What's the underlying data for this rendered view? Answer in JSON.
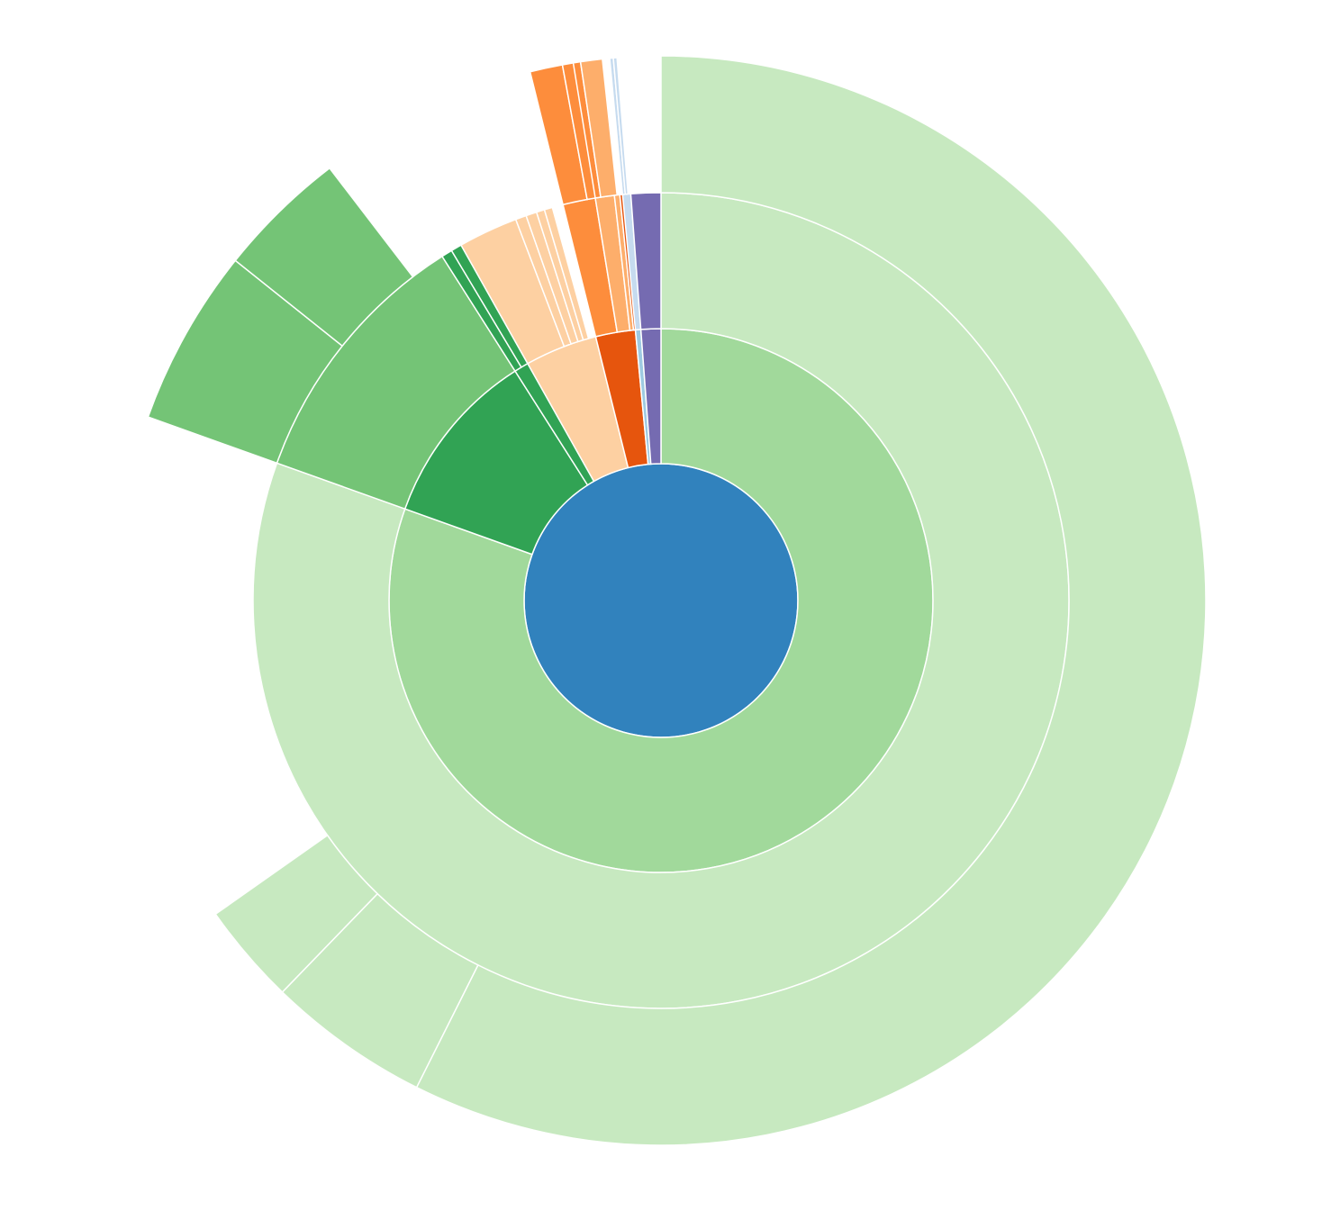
{
  "chart_data": {
    "type": "sunburst",
    "root": {
      "color": "#3182bd",
      "children": [
        {
          "color": "#a1d99b",
          "value": 75.0,
          "children": [
            {
              "color": "#c7e9c0",
              "value": 75.0,
              "children": [
                {
                  "color": "#c7e9c0",
                  "value": 53.5
                },
                {
                  "color": "#c7e9c0",
                  "value": 4.5
                },
                {
                  "color": "#c7e9c0",
                  "value": 2.8
                }
              ]
            }
          ]
        },
        {
          "color": "#31a354",
          "value": 9.8,
          "children": [
            {
              "color": "#74c476",
              "value": 9.8,
              "children": [
                {
                  "color": "#74c476",
                  "value": 4.9
                },
                {
                  "color": "#74c476",
                  "value": 3.6
                }
              ]
            }
          ]
        },
        {
          "color": "#31a354",
          "value": 0.8,
          "children": [
            {
              "color": "#31a354",
              "value": 0.4
            },
            {
              "color": "#31a354",
              "value": 0.4
            }
          ]
        },
        {
          "color": "#fdd0a2",
          "value": 4.0,
          "children": [
            {
              "color": "#fdd0a2",
              "value": 2.2
            },
            {
              "color": "#fdd0a2",
              "value": 0.4
            },
            {
              "color": "#fdd0a2",
              "value": 0.4
            },
            {
              "color": "#fdd0a2",
              "value": 0.3
            },
            {
              "color": "#fdd0a2",
              "value": 0.3
            }
          ]
        },
        {
          "color": "#e6550d",
          "value": 2.2,
          "children": [
            {
              "color": "#fd8d3c",
              "value": 1.2,
              "children": [
                {
                  "color": "#fd8d3c",
                  "value": 0.9
                },
                {
                  "color": "#fd8d3c",
                  "value": 0.4
                }
              ]
            },
            {
              "color": "#fdae6b",
              "value": 0.7,
              "children": [
                {
                  "color": "#fd8d3c",
                  "value": 0.2
                },
                {
                  "color": "#fdae6b",
                  "value": 0.6
                }
              ]
            },
            {
              "color": "#fdae6b",
              "value": 0.2
            },
            {
              "color": "#e6550d",
              "value": 0.2
            }
          ]
        },
        {
          "color": "#9ecae1",
          "value": 0.3,
          "children": [
            {
              "color": "#c6dbef",
              "value": 0.3,
              "children": [
                {
                  "color": "#c6dbef",
                  "value": 0.1
                },
                {
                  "color": "#c6dbef",
                  "value": 0.1
                }
              ]
            }
          ]
        },
        {
          "color": "#756bb1",
          "value": 1.1,
          "children": [
            {
              "color": "#756bb1",
              "value": 1.1
            }
          ]
        }
      ]
    }
  }
}
